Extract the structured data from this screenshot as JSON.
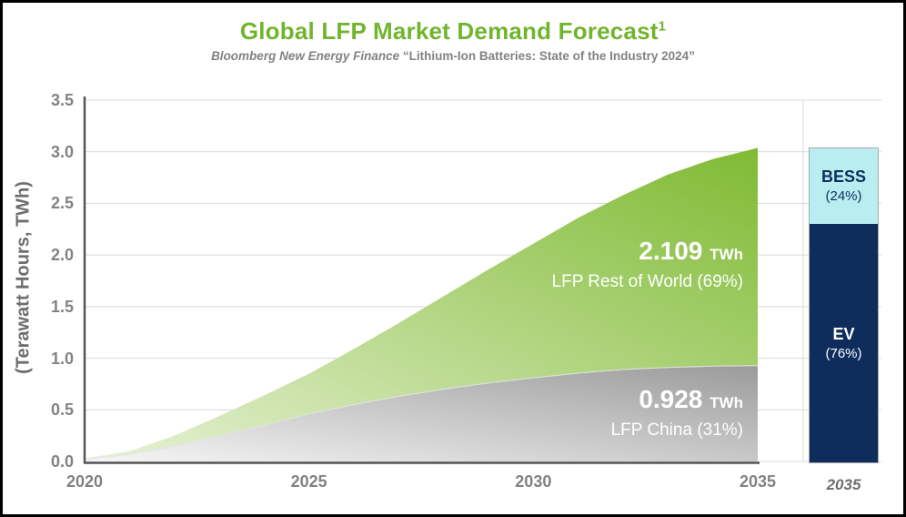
{
  "header": {
    "title": "Global LFP Market Demand Forecast",
    "title_superscript": "1",
    "subtitle_source": "Bloomberg New Energy Finance",
    "subtitle_rest": " “Lithium-Ion Batteries: State of the Industry 2024”",
    "title_color": "#71b52d",
    "subtitle_color": "#808285"
  },
  "chart_data": {
    "type": "area",
    "title": "Global LFP Market Demand Forecast",
    "ylabel": "(Terawatt Hours, TWh)",
    "x": [
      2020,
      2021,
      2022,
      2023,
      2024,
      2025,
      2026,
      2027,
      2028,
      2029,
      2030,
      2031,
      2032,
      2033,
      2034,
      2035
    ],
    "xlim": [
      2020,
      2035
    ],
    "ylim": [
      0,
      3.5
    ],
    "yticks": [
      "0.0",
      "0.5",
      "1.0",
      "1.5",
      "2.0",
      "2.5",
      "3.0",
      "3.5"
    ],
    "xticks": [
      2020,
      2025,
      2030,
      2035
    ],
    "grid": true,
    "grid_color": "#d9d9d9",
    "axis_color": "#55565a",
    "legend_position": "none",
    "series": [
      {
        "name": "LFP China",
        "share_label": "31%",
        "final_value_twh": 0.928,
        "color_start": "#f6f6f6",
        "color_end": "#9b9b9b",
        "values": [
          0.02,
          0.07,
          0.15,
          0.25,
          0.35,
          0.46,
          0.55,
          0.63,
          0.7,
          0.76,
          0.81,
          0.855,
          0.89,
          0.91,
          0.923,
          0.928
        ]
      },
      {
        "name": "LFP Rest of World",
        "share_label": "69%",
        "final_value_twh": 2.109,
        "color_start": "#e8f2d6",
        "color_end": "#7fba33",
        "values": [
          0.01,
          0.03,
          0.1,
          0.19,
          0.29,
          0.39,
          0.54,
          0.71,
          0.9,
          1.1,
          1.3,
          1.505,
          1.69,
          1.87,
          2.007,
          2.109
        ]
      }
    ]
  },
  "annotations": {
    "rest_of_world": {
      "value": "2.109",
      "unit": "TWh",
      "label": "LFP Rest of World (69%)"
    },
    "china": {
      "value": "0.928",
      "unit": "TWh",
      "label": "LFP China (31%)"
    }
  },
  "bar_2035": {
    "year_label": "2035",
    "segments": [
      {
        "name": "BESS",
        "pct_label": "(24%)",
        "pct": 24,
        "color": "#b9edef",
        "text_color": "#0e2d5c"
      },
      {
        "name": "EV",
        "pct_label": "(76%)",
        "pct": 76,
        "color": "#0e2d5c",
        "text_color": "#ffffff"
      }
    ]
  }
}
